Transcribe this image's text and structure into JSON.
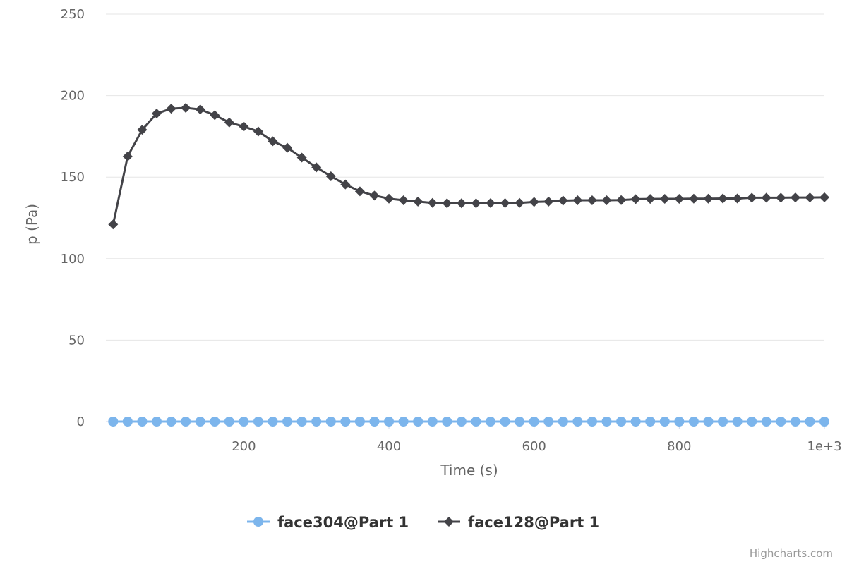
{
  "chart_data": {
    "type": "line",
    "title": "",
    "xlabel": "Time (s)",
    "ylabel": "p (Pa)",
    "xlim": [
      10,
      1000
    ],
    "ylim": [
      0,
      250
    ],
    "yticks": [
      "0",
      "50",
      "100",
      "150",
      "200",
      "250"
    ],
    "xticks": [
      "200",
      "400",
      "600",
      "800",
      "1e+3"
    ],
    "grid": true,
    "legend": "bottom",
    "x": [
      20,
      40,
      60,
      80,
      100,
      120,
      140,
      160,
      180,
      200,
      220,
      240,
      260,
      280,
      300,
      320,
      340,
      360,
      380,
      400,
      420,
      440,
      460,
      480,
      500,
      520,
      540,
      560,
      580,
      600,
      620,
      640,
      660,
      680,
      700,
      720,
      740,
      760,
      780,
      800,
      820,
      840,
      860,
      880,
      900,
      920,
      940,
      960,
      980,
      1000
    ],
    "series": [
      {
        "name": "face304@Part 1",
        "color": "#7cb5ec",
        "marker": "circle",
        "values": [
          0,
          0,
          0,
          0,
          0,
          0,
          0,
          0,
          0,
          0,
          0,
          0,
          0,
          0,
          0,
          0,
          0,
          0,
          0,
          0,
          0,
          0,
          0,
          0,
          0,
          0,
          0,
          0,
          0,
          0,
          0,
          0,
          0,
          0,
          0,
          0,
          0,
          0,
          0,
          0,
          0,
          0,
          0,
          0,
          0,
          0,
          0,
          0,
          0,
          0
        ]
      },
      {
        "name": "face128@Part 1",
        "color": "#434348",
        "marker": "diamond",
        "values": [
          121,
          162.7,
          179,
          189,
          192,
          192.5,
          191.5,
          188,
          183.5,
          181,
          178,
          172,
          168,
          162,
          156,
          150.5,
          145.5,
          141.3,
          138.7,
          136.8,
          135.8,
          135,
          134.2,
          134,
          134,
          134,
          134.1,
          134.1,
          134.2,
          134.8,
          135,
          135.6,
          135.8,
          135.8,
          135.8,
          135.9,
          136.5,
          136.6,
          136.7,
          136.7,
          136.8,
          136.8,
          136.9,
          136.9,
          137.4,
          137.4,
          137.4,
          137.5,
          137.5,
          137.6
        ]
      }
    ]
  },
  "credits": "Highcharts.com"
}
